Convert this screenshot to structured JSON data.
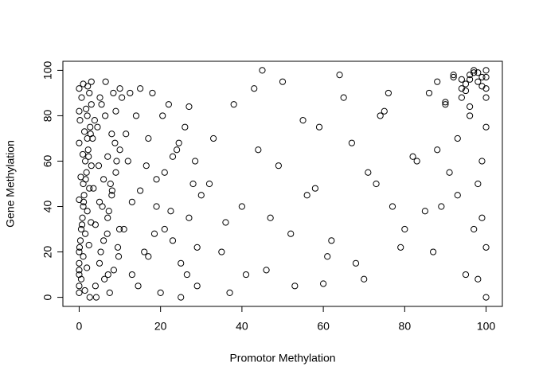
{
  "chart_data": {
    "type": "scatter",
    "xlabel": "Promotor Methylation",
    "ylabel": "Gene Methylation",
    "color": "#000000",
    "xlim": [
      -4,
      104
    ],
    "ylim": [
      -4,
      104
    ],
    "xticks": [
      0,
      20,
      40,
      60,
      80,
      100
    ],
    "yticks": [
      0,
      20,
      40,
      60,
      80,
      100
    ],
    "x": [
      0,
      0,
      0,
      0.5,
      1,
      1,
      1.5,
      2,
      2,
      2.5,
      3,
      0,
      0,
      0.3,
      0.8,
      1.2,
      1.8,
      2.2,
      2.7,
      3,
      0,
      0.5,
      1,
      1.5,
      2,
      2.5,
      3,
      0,
      0.2,
      0.6,
      1,
      1.4,
      1.9,
      2.4,
      2.9,
      0,
      0.4,
      0.9,
      1.3,
      1.7,
      2.1,
      2.6,
      0,
      0.1,
      0.7,
      1.1,
      1.6,
      2.3,
      2.8,
      0,
      4,
      5,
      6,
      7,
      8,
      9,
      10,
      4.5,
      5.5,
      6.5,
      7.5,
      8.5,
      9.5,
      4,
      5,
      6,
      7,
      8,
      9,
      10,
      3.5,
      4.8,
      6.2,
      7.3,
      8.8,
      9.7,
      5.1,
      6.9,
      3.8,
      8.1,
      4.2,
      5.7,
      7.7,
      9.2,
      3.3,
      6.4,
      8.4,
      5.3,
      7.1,
      9.9,
      11,
      12,
      13,
      14,
      15,
      16,
      17,
      18,
      19,
      20,
      21,
      22,
      23,
      24,
      25,
      26,
      27,
      28,
      29,
      30,
      12.5,
      14.5,
      16.5,
      18.5,
      20.5,
      22.5,
      24.5,
      26.5,
      28.5,
      11.5,
      13,
      15,
      17,
      19,
      21,
      23,
      25,
      27,
      29,
      10.5,
      32,
      35,
      38,
      41,
      44,
      47,
      50,
      53,
      56,
      59,
      62,
      65,
      68,
      71,
      74,
      77,
      80,
      83,
      33,
      37,
      40,
      43,
      46,
      49,
      52,
      55,
      58,
      61,
      64,
      67,
      70,
      73,
      76,
      79,
      82,
      85,
      45,
      60,
      75,
      36,
      86,
      88,
      90,
      92,
      94,
      96,
      98,
      100,
      95,
      97,
      99,
      100,
      93,
      91,
      89,
      87,
      96,
      98,
      100,
      94,
      99,
      97,
      95,
      100,
      98,
      96,
      92,
      90,
      88,
      100,
      99,
      97,
      95,
      93,
      100,
      98,
      96,
      94,
      100,
      99
    ],
    "y": [
      2,
      10,
      20,
      30,
      40,
      50,
      60,
      70,
      80,
      90,
      95,
      5,
      15,
      25,
      35,
      45,
      55,
      65,
      75,
      85,
      92,
      8,
      18,
      28,
      38,
      48,
      58,
      68,
      78,
      88,
      94,
      3,
      13,
      23,
      33,
      43,
      53,
      63,
      73,
      83,
      93,
      0,
      12,
      22,
      32,
      42,
      52,
      62,
      72,
      82,
      5,
      15,
      25,
      35,
      45,
      55,
      65,
      75,
      85,
      95,
      2,
      12,
      22,
      32,
      42,
      52,
      62,
      72,
      82,
      92,
      48,
      58,
      8,
      38,
      68,
      18,
      88,
      28,
      78,
      47,
      0,
      40,
      50,
      60,
      70,
      80,
      90,
      20,
      10,
      30,
      30,
      60,
      10,
      80,
      47,
      20,
      70,
      90,
      40,
      2,
      55,
      85,
      25,
      65,
      15,
      75,
      35,
      50,
      5,
      45,
      90,
      5,
      58,
      28,
      80,
      38,
      68,
      10,
      60,
      72,
      42,
      92,
      18,
      52,
      30,
      62,
      0,
      84,
      22,
      88,
      50,
      20,
      85,
      10,
      65,
      35,
      95,
      5,
      45,
      75,
      25,
      88,
      15,
      55,
      80,
      40,
      30,
      60,
      70,
      2,
      40,
      92,
      12,
      58,
      28,
      78,
      48,
      18,
      98,
      68,
      8,
      50,
      90,
      22,
      62,
      38,
      100,
      6,
      82,
      33,
      90,
      95,
      85,
      98,
      92,
      96,
      99,
      97,
      94,
      100,
      93,
      88,
      70,
      55,
      40,
      20,
      98,
      95,
      92,
      96,
      60,
      30,
      10,
      75,
      50,
      84,
      97,
      86,
      65,
      0,
      97,
      99,
      91,
      45,
      22,
      8,
      80,
      88,
      100,
      35
    ]
  }
}
